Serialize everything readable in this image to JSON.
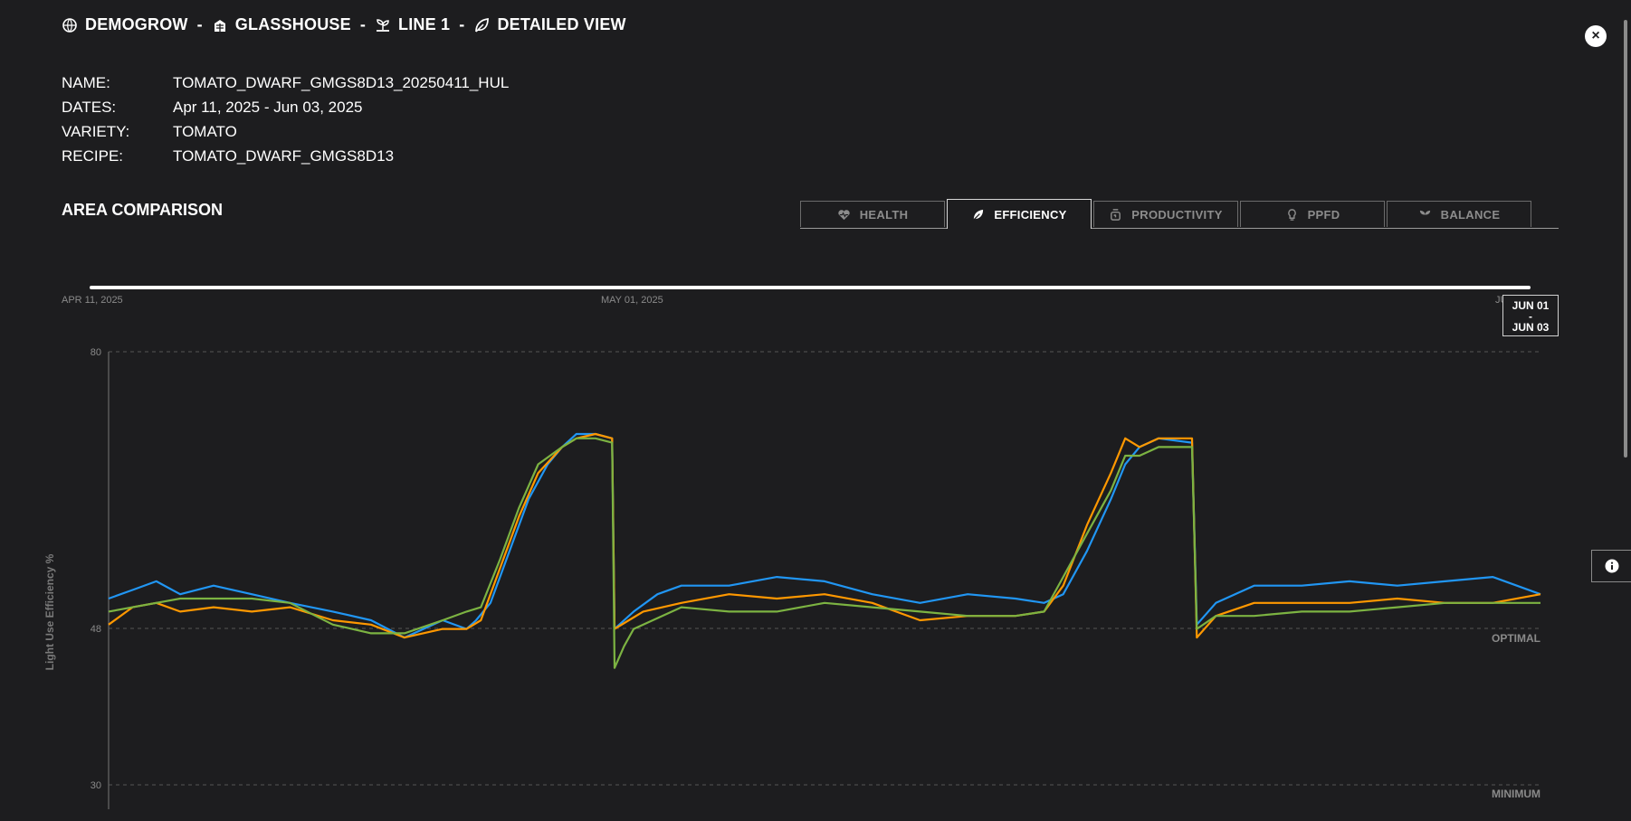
{
  "breadcrumb": [
    {
      "icon": "globe-leaf-icon",
      "label": "DEMOGROW"
    },
    {
      "icon": "greenhouse-icon",
      "label": "GLASSHOUSE"
    },
    {
      "icon": "seedling-tray-icon",
      "label": "LINE 1"
    },
    {
      "icon": "leaf-icon",
      "label": "DETAILED VIEW"
    }
  ],
  "breadcrumb_separator": "-",
  "close_label": "×",
  "info": [
    {
      "label": "NAME:",
      "value": "TOMATO_DWARF_GMGS8D13_20250411_HUL"
    },
    {
      "label": "DATES:",
      "value": "Apr 11, 2025 - Jun 03, 2025"
    },
    {
      "label": "VARIETY:",
      "value": "TOMATO"
    },
    {
      "label": "RECIPE:",
      "value": "TOMATO_DWARF_GMGS8D13"
    }
  ],
  "section_title": "AREA COMPARISON",
  "tabs": [
    {
      "label": "HEALTH",
      "icon": "heart-icon",
      "active": false
    },
    {
      "label": "EFFICIENCY",
      "icon": "leaf-icon",
      "active": true
    },
    {
      "label": "PRODUCTIVITY",
      "icon": "scale-icon",
      "active": false
    },
    {
      "label": "PPFD",
      "icon": "bulb-icon",
      "active": false
    },
    {
      "label": "BALANCE",
      "icon": "sprout-icon",
      "active": false
    }
  ],
  "timeline": {
    "start_label": "APR 11, 2025",
    "mid_label": "MAY 01, 2025",
    "end_label": "JU",
    "tooltip_from": "JUN 01",
    "tooltip_dash": "-",
    "tooltip_to": "JUN 03"
  },
  "colors": {
    "background": "#1d1d1f",
    "blue": "#2196f3",
    "orange": "#ff9800",
    "green": "#7cb342"
  },
  "chart_data": {
    "type": "line",
    "ylabel": "Light Use Efficiency %",
    "ylim": [
      30,
      80
    ],
    "y_ticks": [
      "80",
      "48",
      "30"
    ],
    "reference_lines": [
      {
        "label": "OPTIMAL",
        "value": 48
      },
      {
        "label": "MINIMUM",
        "value": 30
      }
    ],
    "x_range_days": [
      0,
      3
    ],
    "series": [
      {
        "color": "#2196f3",
        "points": [
          [
            0.0,
            51.5
          ],
          [
            0.05,
            52.5
          ],
          [
            0.1,
            53.5
          ],
          [
            0.15,
            52
          ],
          [
            0.22,
            53
          ],
          [
            0.3,
            52
          ],
          [
            0.38,
            51
          ],
          [
            0.47,
            50
          ],
          [
            0.55,
            49
          ],
          [
            0.62,
            47
          ],
          [
            0.7,
            49
          ],
          [
            0.75,
            48
          ],
          [
            0.77,
            49
          ],
          [
            0.8,
            51
          ],
          [
            0.84,
            57
          ],
          [
            0.88,
            63
          ],
          [
            0.92,
            67
          ],
          [
            0.95,
            69
          ],
          [
            0.98,
            70.5
          ],
          [
            1.02,
            70.5
          ],
          [
            1.055,
            70
          ],
          [
            1.06,
            48
          ],
          [
            1.08,
            49
          ],
          [
            1.1,
            50
          ],
          [
            1.15,
            52
          ],
          [
            1.2,
            53
          ],
          [
            1.3,
            53
          ],
          [
            1.4,
            54
          ],
          [
            1.5,
            53.5
          ],
          [
            1.6,
            52
          ],
          [
            1.7,
            51
          ],
          [
            1.8,
            52
          ],
          [
            1.9,
            51.5
          ],
          [
            1.96,
            51
          ],
          [
            2.0,
            52
          ],
          [
            2.05,
            57
          ],
          [
            2.1,
            63
          ],
          [
            2.13,
            67
          ],
          [
            2.16,
            69
          ],
          [
            2.2,
            70
          ],
          [
            2.27,
            69.5
          ],
          [
            2.28,
            48.5
          ],
          [
            2.32,
            51
          ],
          [
            2.4,
            53
          ],
          [
            2.5,
            53
          ],
          [
            2.6,
            53.5
          ],
          [
            2.7,
            53
          ],
          [
            2.8,
            53.5
          ],
          [
            2.9,
            54
          ],
          [
            3.0,
            52
          ]
        ]
      },
      {
        "color": "#ff9800",
        "points": [
          [
            0.0,
            48.5
          ],
          [
            0.05,
            50.5
          ],
          [
            0.1,
            51
          ],
          [
            0.15,
            50
          ],
          [
            0.22,
            50.5
          ],
          [
            0.3,
            50
          ],
          [
            0.38,
            50.5
          ],
          [
            0.47,
            49
          ],
          [
            0.55,
            48.5
          ],
          [
            0.62,
            47
          ],
          [
            0.7,
            48
          ],
          [
            0.75,
            48
          ],
          [
            0.78,
            49
          ],
          [
            0.82,
            55
          ],
          [
            0.86,
            61
          ],
          [
            0.9,
            66
          ],
          [
            0.95,
            69
          ],
          [
            0.98,
            70
          ],
          [
            1.02,
            70.5
          ],
          [
            1.055,
            70
          ],
          [
            1.06,
            48
          ],
          [
            1.09,
            49
          ],
          [
            1.12,
            50
          ],
          [
            1.2,
            51
          ],
          [
            1.3,
            52
          ],
          [
            1.4,
            51.5
          ],
          [
            1.5,
            52
          ],
          [
            1.6,
            51
          ],
          [
            1.7,
            49
          ],
          [
            1.8,
            49.5
          ],
          [
            1.9,
            49.5
          ],
          [
            1.96,
            50
          ],
          [
            2.0,
            53
          ],
          [
            2.05,
            60
          ],
          [
            2.1,
            66
          ],
          [
            2.13,
            70
          ],
          [
            2.16,
            69
          ],
          [
            2.2,
            70
          ],
          [
            2.27,
            70
          ],
          [
            2.28,
            47
          ],
          [
            2.32,
            49.5
          ],
          [
            2.4,
            51
          ],
          [
            2.5,
            51
          ],
          [
            2.6,
            51
          ],
          [
            2.7,
            51.5
          ],
          [
            2.8,
            51
          ],
          [
            2.9,
            51
          ],
          [
            3.0,
            52
          ]
        ]
      },
      {
        "color": "#7cb342",
        "points": [
          [
            0.0,
            50
          ],
          [
            0.05,
            50.5
          ],
          [
            0.1,
            51
          ],
          [
            0.15,
            51.5
          ],
          [
            0.22,
            51.5
          ],
          [
            0.3,
            51.5
          ],
          [
            0.38,
            51
          ],
          [
            0.47,
            48.5
          ],
          [
            0.55,
            47.5
          ],
          [
            0.62,
            47.5
          ],
          [
            0.7,
            49
          ],
          [
            0.75,
            50
          ],
          [
            0.78,
            50.5
          ],
          [
            0.82,
            56
          ],
          [
            0.86,
            62
          ],
          [
            0.9,
            67
          ],
          [
            0.95,
            69
          ],
          [
            0.98,
            70
          ],
          [
            1.02,
            70
          ],
          [
            1.055,
            69.5
          ],
          [
            1.06,
            43.5
          ],
          [
            1.08,
            46
          ],
          [
            1.1,
            48
          ],
          [
            1.2,
            50.5
          ],
          [
            1.3,
            50
          ],
          [
            1.4,
            50
          ],
          [
            1.5,
            51
          ],
          [
            1.6,
            50.5
          ],
          [
            1.7,
            50
          ],
          [
            1.8,
            49.5
          ],
          [
            1.9,
            49.5
          ],
          [
            1.96,
            50
          ],
          [
            2.0,
            54
          ],
          [
            2.05,
            59
          ],
          [
            2.1,
            64
          ],
          [
            2.13,
            68
          ],
          [
            2.16,
            68
          ],
          [
            2.2,
            69
          ],
          [
            2.27,
            69
          ],
          [
            2.28,
            48
          ],
          [
            2.32,
            49.5
          ],
          [
            2.4,
            49.5
          ],
          [
            2.5,
            50
          ],
          [
            2.6,
            50
          ],
          [
            2.7,
            50.5
          ],
          [
            2.8,
            51
          ],
          [
            2.9,
            51
          ],
          [
            3.0,
            51
          ]
        ]
      }
    ]
  }
}
